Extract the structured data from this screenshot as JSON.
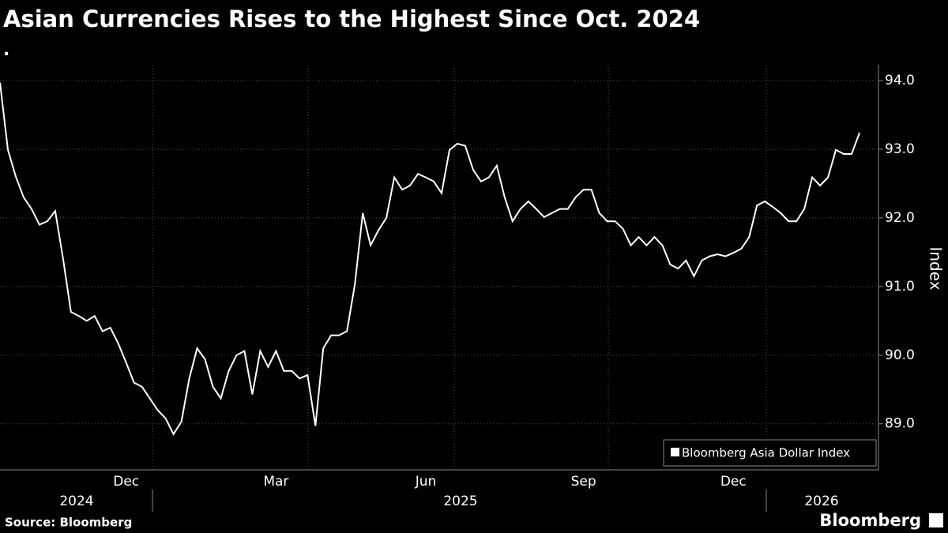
{
  "chart_data": {
    "type": "line",
    "title": "Asian Currencies Rises to the Highest Since Oct. 2024",
    "subtitle": ".",
    "y_label": "Index",
    "source": "Source: Bloomberg",
    "brand": "Bloomberg",
    "year_labels": [
      "2024",
      "2025",
      "2026"
    ],
    "categories": [
      null,
      null,
      null,
      null,
      null,
      null,
      null,
      null,
      null,
      null,
      null,
      null,
      null,
      null,
      null,
      null,
      "Dec",
      null,
      null,
      null,
      null,
      null,
      null,
      null,
      null,
      null,
      null,
      null,
      null,
      null,
      null,
      null,
      null,
      null,
      null,
      "Mar",
      null,
      null,
      null,
      null,
      null,
      null,
      null,
      null,
      null,
      null,
      null,
      null,
      null,
      null,
      null,
      null,
      null,
      null,
      "Jun",
      null,
      null,
      null,
      null,
      null,
      null,
      null,
      null,
      null,
      null,
      null,
      null,
      null,
      null,
      null,
      null,
      null,
      null,
      null,
      "Sep",
      null,
      null,
      null,
      null,
      null,
      null,
      null,
      null,
      null,
      null,
      null,
      null,
      null,
      null,
      null,
      null,
      null,
      null,
      "Dec",
      null,
      null,
      null,
      null,
      null,
      null,
      null,
      null,
      null,
      null,
      null,
      null,
      null,
      null,
      null,
      null
    ],
    "series": [
      {
        "name": "Bloomberg Asia Dollar Index",
        "color": "#ffffff",
        "values": [
          93.97,
          92.99,
          92.6,
          92.3,
          92.13,
          91.9,
          91.95,
          92.1,
          91.4,
          90.63,
          90.57,
          90.5,
          90.57,
          90.35,
          90.4,
          90.17,
          89.89,
          89.6,
          89.54,
          89.37,
          89.2,
          89.08,
          88.85,
          89.03,
          89.66,
          90.1,
          89.94,
          89.54,
          89.37,
          89.77,
          90.0,
          90.06,
          89.43,
          90.06,
          89.83,
          90.06,
          89.77,
          89.77,
          89.66,
          89.71,
          88.97,
          90.1,
          90.29,
          90.29,
          90.35,
          91.03,
          92.07,
          91.6,
          91.82,
          92.0,
          92.59,
          92.41,
          92.47,
          92.64,
          92.59,
          92.53,
          92.36,
          92.99,
          93.08,
          93.05,
          92.7,
          92.53,
          92.59,
          92.76,
          92.3,
          91.95,
          92.13,
          92.24,
          92.13,
          92.01,
          92.07,
          92.13,
          92.13,
          92.3,
          92.41,
          92.41,
          92.07,
          91.95,
          91.95,
          91.84,
          91.6,
          91.72,
          91.6,
          91.72,
          91.6,
          91.32,
          91.26,
          91.38,
          91.15,
          91.38,
          91.44,
          91.47,
          91.44,
          91.49,
          91.55,
          91.72,
          92.18,
          92.24,
          92.16,
          92.07,
          91.95,
          91.95,
          92.13,
          92.59,
          92.47,
          92.59,
          92.99,
          92.93,
          92.93,
          93.24
        ]
      }
    ],
    "ylim": [
      88.33,
      94.23
    ],
    "yticks": [
      {
        "value": 89,
        "label": "89.0"
      },
      {
        "value": 90,
        "label": "90.0"
      },
      {
        "value": 91,
        "label": "91.0"
      },
      {
        "value": 92,
        "label": "92.0"
      },
      {
        "value": 93,
        "label": "93.0"
      },
      {
        "value": 94,
        "label": "94.0"
      }
    ],
    "grid": true,
    "legend": "bottom-right"
  }
}
